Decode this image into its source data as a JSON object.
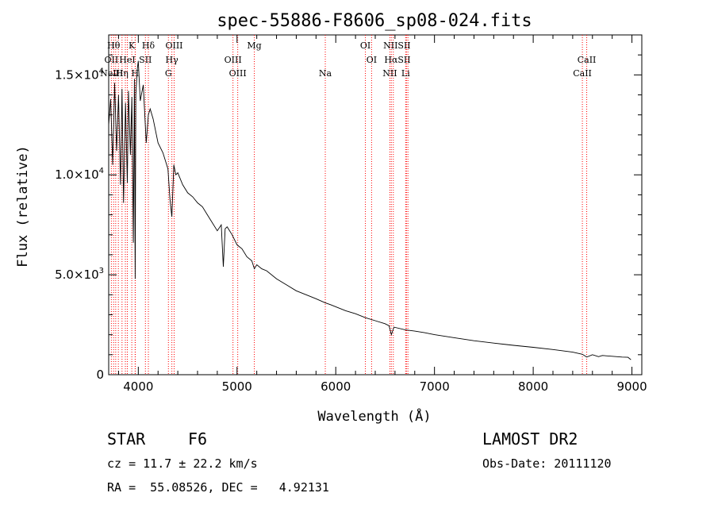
{
  "chart_data": {
    "type": "line",
    "title": "spec-55886-F8606_sp08-024.fits",
    "xlabel": "Wavelength (Å)",
    "ylabel": "Flux (relative)",
    "xlim": [
      3700,
      9100
    ],
    "ylim": [
      0,
      17000
    ],
    "x_ticks": [
      4000,
      5000,
      6000,
      7000,
      8000,
      9000
    ],
    "x_tick_labels": [
      "4000",
      "5000",
      "6000",
      "7000",
      "8000",
      "9000"
    ],
    "y_ticks": [
      0,
      5000,
      10000,
      15000
    ],
    "y_tick_labels": [
      {
        "mantissa": "0",
        "exp": ""
      },
      {
        "mantissa": "5.0×10",
        "exp": "3"
      },
      {
        "mantissa": "1.0×10",
        "exp": "4"
      },
      {
        "mantissa": "1.5×10",
        "exp": "4"
      }
    ],
    "grid": false,
    "series": [
      {
        "x": [
          3700,
          3720,
          3740,
          3760,
          3780,
          3800,
          3820,
          3835,
          3850,
          3870,
          3889,
          3900,
          3920,
          3935,
          3950,
          3960,
          3968,
          3975,
          3990,
          4000,
          4020,
          4050,
          4080,
          4102,
          4120,
          4150,
          4200,
          4250,
          4300,
          4320,
          4340,
          4360,
          4380,
          4400,
          4450,
          4500,
          4550,
          4600,
          4650,
          4700,
          4750,
          4800,
          4840,
          4861,
          4880,
          4900,
          4950,
          5000,
          5050,
          5100,
          5150,
          5175,
          5200,
          5250,
          5300,
          5400,
          5500,
          5600,
          5700,
          5800,
          5893,
          5950,
          6000,
          6100,
          6200,
          6300,
          6400,
          6500,
          6540,
          6563,
          6590,
          6700,
          6800,
          6900,
          7000,
          7200,
          7400,
          7600,
          7800,
          8000,
          8200,
          8400,
          8498,
          8542,
          8600,
          8662,
          8700,
          8800,
          8900,
          8960,
          8990
        ],
        "y": [
          12500,
          13800,
          10500,
          14600,
          11200,
          14000,
          9500,
          14300,
          8600,
          13600,
          9600,
          14200,
          11000,
          13900,
          6600,
          14800,
          4800,
          14000,
          15300,
          15700,
          13700,
          14500,
          11600,
          13000,
          13300,
          12800,
          11600,
          11100,
          10300,
          8800,
          7900,
          10500,
          10000,
          10100,
          9500,
          9100,
          8900,
          8600,
          8400,
          8000,
          7600,
          7200,
          7500,
          5400,
          7300,
          7400,
          7000,
          6500,
          6300,
          5900,
          5700,
          5300,
          5500,
          5300,
          5200,
          4800,
          4500,
          4200,
          4000,
          3800,
          3600,
          3500,
          3400,
          3200,
          3050,
          2850,
          2700,
          2550,
          2450,
          2000,
          2380,
          2250,
          2180,
          2100,
          2000,
          1850,
          1700,
          1580,
          1470,
          1370,
          1260,
          1130,
          1020,
          880,
          1000,
          900,
          960,
          920,
          880,
          870,
          750
        ]
      }
    ],
    "spectral_lines": [
      {
        "x": 3727,
        "label": "OII"
      },
      {
        "x": 3750,
        "label": "H"
      },
      {
        "x": 3771,
        "label": "H"
      },
      {
        "x": 3798,
        "label": "Hθ"
      },
      {
        "x": 3835,
        "label": "Hη"
      },
      {
        "x": 3869,
        "label": "NeIII"
      },
      {
        "x": 3889,
        "label": "HeI"
      },
      {
        "x": 3934,
        "label": "K"
      },
      {
        "x": 3968,
        "label": "H"
      },
      {
        "x": 3970,
        "label": "Hε"
      },
      {
        "x": 4072,
        "label": "SII"
      },
      {
        "x": 4102,
        "label": "Hδ"
      },
      {
        "x": 4340,
        "label": "Hγ"
      },
      {
        "x": 4305,
        "label": "G"
      },
      {
        "x": 4363,
        "label": "OIII"
      },
      {
        "x": 4959,
        "label": "OIII"
      },
      {
        "x": 5007,
        "label": "OIII"
      },
      {
        "x": 5175,
        "label": "Mg"
      },
      {
        "x": 5894,
        "label": "Na"
      },
      {
        "x": 6300,
        "label": "OI"
      },
      {
        "x": 6363,
        "label": "OI"
      },
      {
        "x": 6548,
        "label": "NII"
      },
      {
        "x": 6563,
        "label": "Hα"
      },
      {
        "x": 6583,
        "label": "NII"
      },
      {
        "x": 6708,
        "label": "Li"
      },
      {
        "x": 6716,
        "label": "SII"
      },
      {
        "x": 6731,
        "label": "SII"
      },
      {
        "x": 8498,
        "label": "CaII"
      },
      {
        "x": 8542,
        "label": "CaII"
      }
    ],
    "line_labels": [
      {
        "text": "Hθ",
        "x": 3750,
        "row": 1
      },
      {
        "text": "K",
        "x": 3934,
        "row": 1
      },
      {
        "text": "Hδ",
        "x": 4102,
        "row": 1
      },
      {
        "text": "OIII",
        "x": 4363,
        "row": 1
      },
      {
        "text": "Mg",
        "x": 5175,
        "row": 1
      },
      {
        "text": "OI",
        "x": 6300,
        "row": 1
      },
      {
        "text": "NIISII",
        "x": 6620,
        "row": 1
      },
      {
        "text": "OII",
        "x": 3727,
        "row": 2
      },
      {
        "text": "HeI",
        "x": 3889,
        "row": 2
      },
      {
        "text": "SII",
        "x": 4072,
        "row": 2
      },
      {
        "text": "Hγ",
        "x": 4340,
        "row": 2
      },
      {
        "text": "OIII",
        "x": 4959,
        "row": 2
      },
      {
        "text": "OI",
        "x": 6363,
        "row": 2
      },
      {
        "text": "HαSII",
        "x": 6625,
        "row": 2
      },
      {
        "text": "CaII",
        "x": 8542,
        "row": 2
      },
      {
        "text": "NeIII",
        "x": 3730,
        "row": 3
      },
      {
        "text": "Hη",
        "x": 3835,
        "row": 3
      },
      {
        "text": "H",
        "x": 3968,
        "row": 3
      },
      {
        "text": "G",
        "x": 4305,
        "row": 3
      },
      {
        "text": "OIII",
        "x": 5007,
        "row": 3
      },
      {
        "text": "Na",
        "x": 5894,
        "row": 3
      },
      {
        "text": "NII",
        "x": 6548,
        "row": 3
      },
      {
        "text": "Li",
        "x": 6708,
        "row": 3
      },
      {
        "text": "CaII",
        "x": 8498,
        "row": 3
      }
    ],
    "colors": {
      "spectrum": "#000000",
      "lines": "#ff0000"
    }
  },
  "info": {
    "object_class": "STAR",
    "subclass": "F6",
    "survey": "LAMOST DR2",
    "redshift": "cz = 11.7 ± 22.2 km/s",
    "obs_date": "Obs-Date: 20111120",
    "coords": "RA =  55.08526, DEC =   4.92131"
  }
}
